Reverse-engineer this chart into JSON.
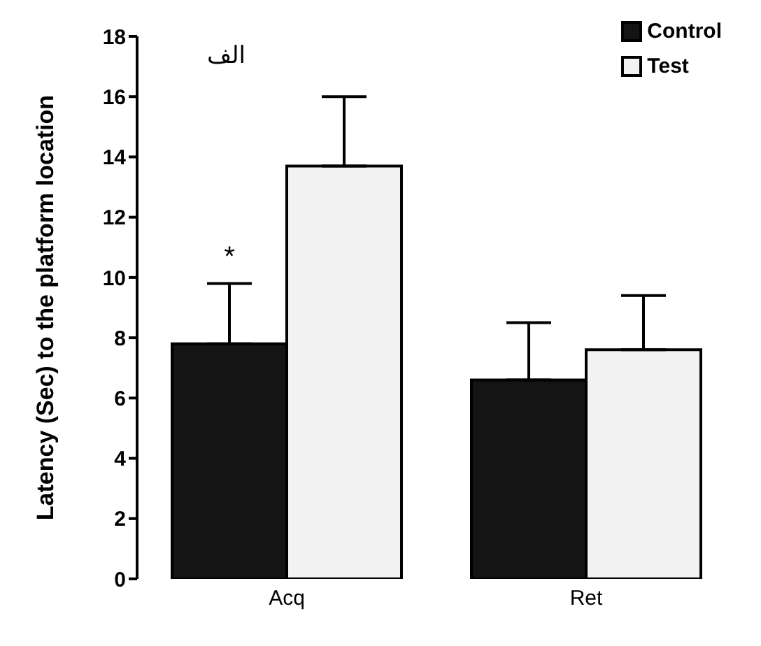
{
  "chart_data": {
    "type": "bar",
    "ylabel": "Latency (Sec) to the platform location",
    "categories": [
      "Acq",
      "Ret"
    ],
    "series": [
      {
        "name": "Control",
        "color": "#141414",
        "values": [
          7.8,
          6.6
        ],
        "errors": [
          [
            7.8,
            9.8
          ],
          [
            6.6,
            8.5
          ]
        ]
      },
      {
        "name": "Test",
        "color": "#f2f2f2",
        "values": [
          13.7,
          7.6
        ],
        "errors": [
          [
            13.7,
            16
          ],
          [
            7.6,
            9.4
          ]
        ]
      }
    ],
    "ylim": [
      0,
      18
    ],
    "yticks": [
      0,
      2,
      4,
      6,
      8,
      10,
      12,
      14,
      16,
      18
    ],
    "grid": false,
    "legend": "top right",
    "annotations": [
      "الف",
      {
        "text": "*",
        "x": "Acq",
        "y": 10.4
      }
    ]
  }
}
